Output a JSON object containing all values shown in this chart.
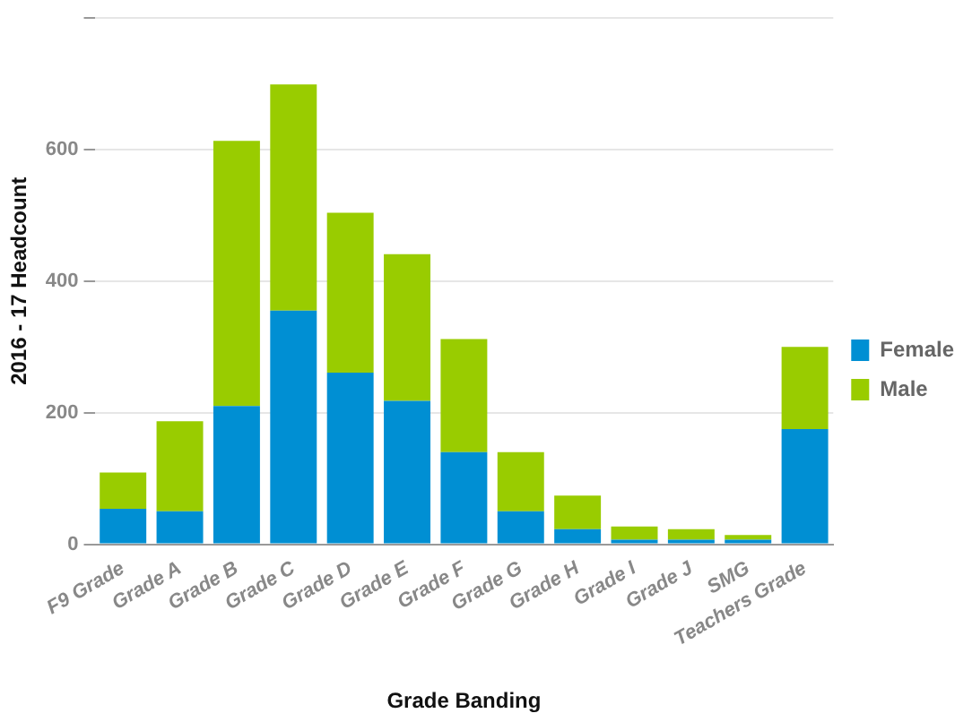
{
  "chart_data": {
    "type": "bar",
    "stacked": true,
    "xlabel": "Grade Banding",
    "ylabel": "2016 - 17 Headcount",
    "categories": [
      "F9 Grade",
      "Grade A",
      "Grade B",
      "Grade C",
      "Grade D",
      "Grade E",
      "Grade F",
      "Grade G",
      "Grade H",
      "Grade I",
      "Grade J",
      "SMG",
      "Teachers Grade"
    ],
    "series": [
      {
        "name": "Female",
        "color": "#008fd3",
        "values": [
          54,
          50,
          210,
          355,
          261,
          218,
          140,
          50,
          23,
          7,
          7,
          7,
          175
        ]
      },
      {
        "name": "Male",
        "color": "#99cc00",
        "values": [
          55,
          137,
          403,
          344,
          243,
          223,
          172,
          90,
          51,
          20,
          16,
          7,
          125
        ]
      }
    ],
    "ylim": [
      0,
      800
    ],
    "yticks": [
      0,
      200,
      400,
      600,
      {
        "value": 800,
        "label": null
      }
    ],
    "grid": "y",
    "legend": "right"
  }
}
